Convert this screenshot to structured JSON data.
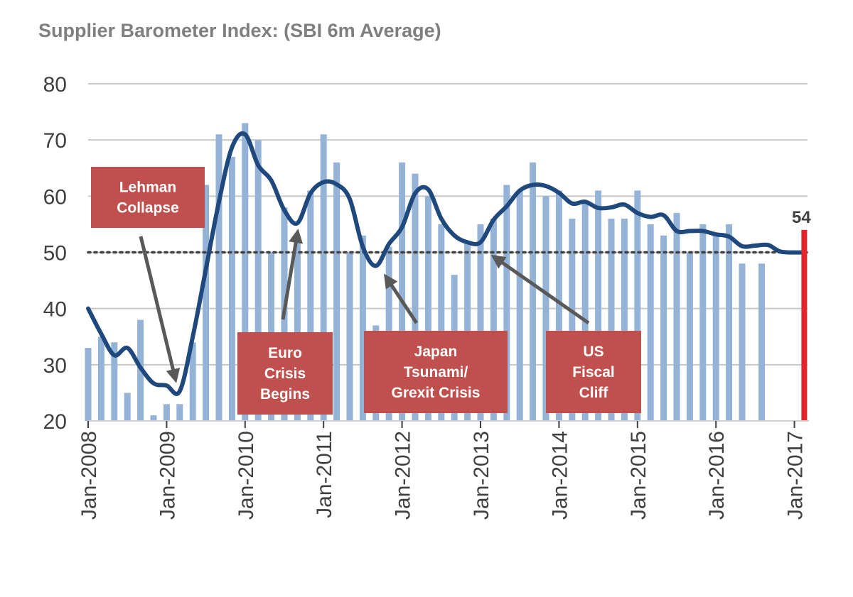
{
  "chart_data": {
    "type": "bar",
    "title": "Supplier Barometer Index: (SBI 6m Average)",
    "y_ticks": [
      "20",
      "30",
      "40",
      "50",
      "60",
      "70",
      "80"
    ],
    "ylim": [
      20,
      80
    ],
    "x_ticks": [
      "Jan-2008",
      "Jan-2009",
      "Jan-2010",
      "Jan-2011",
      "Jan-2012",
      "Jan-2013",
      "Jan-2014",
      "Jan-2015",
      "Jan-2016",
      "Jan-2017"
    ],
    "xlim": [
      0,
      110
    ],
    "threshold": 50,
    "grid": true,
    "series": [
      {
        "kind": "bar",
        "color": "#95b3d7",
        "points": [
          [
            0,
            33
          ],
          [
            2,
            35
          ],
          [
            4,
            34
          ],
          [
            6,
            25
          ],
          [
            8,
            38
          ],
          [
            10,
            21
          ],
          [
            12,
            23
          ],
          [
            14,
            23
          ],
          [
            16,
            34
          ],
          [
            18,
            62
          ],
          [
            20,
            71
          ],
          [
            22,
            67
          ],
          [
            24,
            73
          ],
          [
            26,
            70
          ],
          [
            28,
            50
          ],
          [
            30,
            58
          ],
          [
            32,
            52
          ],
          [
            34,
            61
          ],
          [
            36,
            71
          ],
          [
            38,
            66
          ],
          [
            40,
            50
          ],
          [
            42,
            53
          ],
          [
            44,
            37
          ],
          [
            46,
            51
          ],
          [
            48,
            66
          ],
          [
            50,
            64
          ],
          [
            52,
            60
          ],
          [
            54,
            55
          ],
          [
            56,
            46
          ],
          [
            58,
            52
          ],
          [
            60,
            55
          ],
          [
            62,
            56
          ],
          [
            64,
            62
          ],
          [
            66,
            61
          ],
          [
            68,
            66
          ],
          [
            70,
            60
          ],
          [
            72,
            61
          ],
          [
            74,
            56
          ],
          [
            76,
            59
          ],
          [
            78,
            61
          ],
          [
            80,
            56
          ],
          [
            82,
            56
          ],
          [
            84,
            61
          ],
          [
            86,
            55
          ],
          [
            88,
            53
          ],
          [
            90,
            57
          ],
          [
            92,
            50
          ],
          [
            94,
            55
          ],
          [
            96,
            53
          ],
          [
            98,
            55
          ],
          [
            100,
            48
          ],
          [
            103,
            48
          ]
        ]
      },
      {
        "kind": "line",
        "color": "#1f497d",
        "points": [
          [
            0,
            40
          ],
          [
            2,
            35.5
          ],
          [
            4,
            31.7
          ],
          [
            6,
            33
          ],
          [
            8,
            29.5
          ],
          [
            10,
            26.7
          ],
          [
            12,
            26.3
          ],
          [
            14,
            25.3
          ],
          [
            16,
            35
          ],
          [
            18,
            47
          ],
          [
            20,
            59
          ],
          [
            22,
            68.7
          ],
          [
            24,
            71
          ],
          [
            26,
            65.5
          ],
          [
            28,
            62.8
          ],
          [
            30,
            57.5
          ],
          [
            32,
            55.2
          ],
          [
            34,
            60.5
          ],
          [
            36,
            62.5
          ],
          [
            38,
            62.1
          ],
          [
            40,
            59.5
          ],
          [
            42,
            51
          ],
          [
            44,
            47.6
          ],
          [
            46,
            51.5
          ],
          [
            48,
            54.5
          ],
          [
            50,
            60.5
          ],
          [
            52,
            61.2
          ],
          [
            54,
            56
          ],
          [
            56,
            53
          ],
          [
            58,
            51.8
          ],
          [
            60,
            51.8
          ],
          [
            62,
            55.8
          ],
          [
            64,
            58.2
          ],
          [
            66,
            61
          ],
          [
            68,
            62
          ],
          [
            70,
            61.8
          ],
          [
            72,
            60.6
          ],
          [
            74,
            58.7
          ],
          [
            76,
            59
          ],
          [
            78,
            57.9
          ],
          [
            80,
            58
          ],
          [
            82,
            58.5
          ],
          [
            84,
            57
          ],
          [
            86,
            56.3
          ],
          [
            88,
            56.6
          ],
          [
            90,
            53.8
          ],
          [
            92,
            53.8
          ],
          [
            94,
            53.8
          ],
          [
            96,
            53.2
          ],
          [
            98,
            52.8
          ],
          [
            100,
            51.1
          ],
          [
            102,
            51.2
          ],
          [
            104,
            51.3
          ],
          [
            106,
            50.1
          ],
          [
            109.5,
            50
          ]
        ]
      },
      {
        "kind": "highlight-bar",
        "color": "#e3242b",
        "points": [
          [
            109.5,
            54
          ]
        ],
        "label": "54"
      }
    ],
    "annotations": [
      {
        "lines": [
          "Lehman",
          "Collapse"
        ]
      },
      {
        "lines": [
          "Euro",
          "Crisis",
          "Begins"
        ]
      },
      {
        "lines": [
          "Japan",
          "Tsunami/",
          "Grexit Crisis"
        ]
      },
      {
        "lines": [
          "US",
          "Fiscal",
          "Cliff"
        ]
      }
    ],
    "colors": {
      "annotation_box": "#c0504d",
      "arrow": "#595959",
      "grid": "#c8c8c8",
      "threshold": "#404040"
    }
  }
}
